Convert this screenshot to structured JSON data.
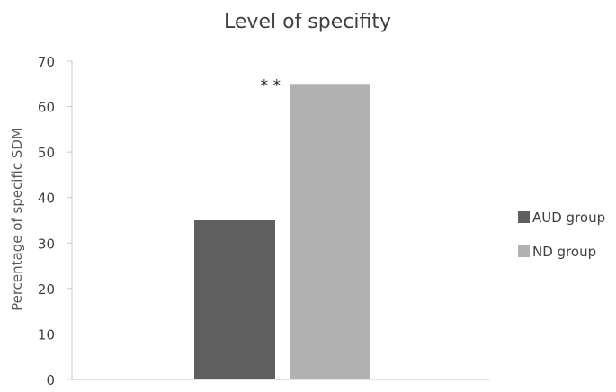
{
  "chart_data": {
    "type": "bar",
    "title": "Level of specifity",
    "xlabel": "",
    "ylabel": "Percentage of specific SDM",
    "ylim": [
      0,
      70
    ],
    "yticks": [
      0,
      10,
      20,
      30,
      40,
      50,
      60,
      70
    ],
    "categories": [
      ""
    ],
    "series": [
      {
        "name": "AUD group",
        "values": [
          35
        ],
        "color": "#5f5f5f"
      },
      {
        "name": "ND group",
        "values": [
          65
        ],
        "color": "#b1b1b1"
      }
    ],
    "annotations": [
      {
        "text": "* *",
        "series": "ND group"
      }
    ],
    "grid": false,
    "legend_position": "right"
  }
}
